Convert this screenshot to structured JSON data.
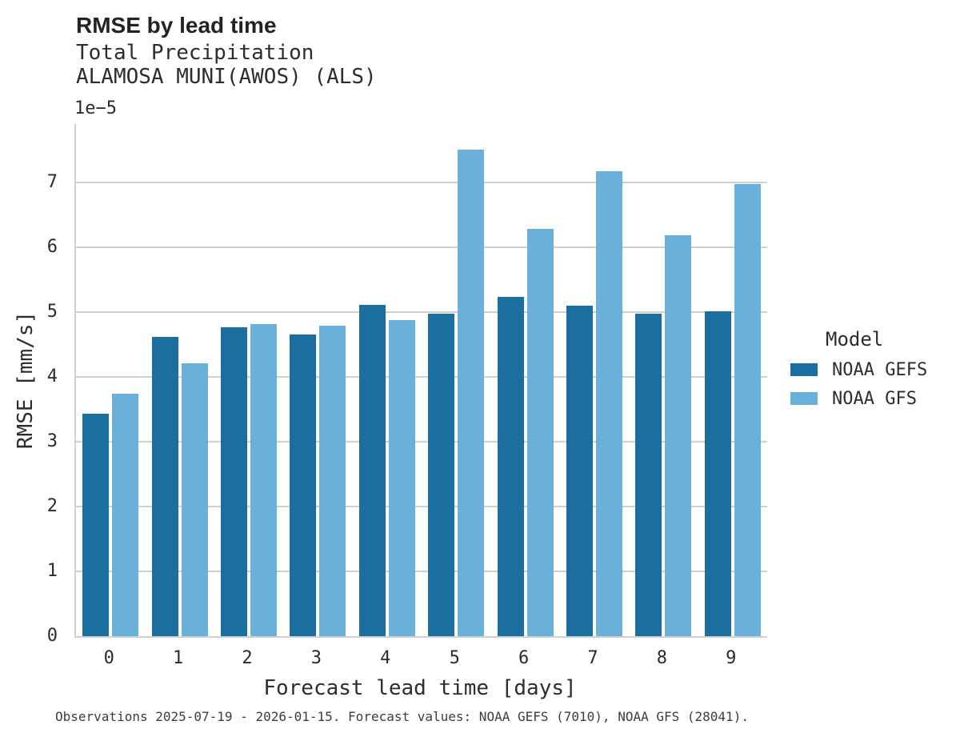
{
  "chart_data": {
    "type": "bar",
    "title": "RMSE by lead time",
    "subtitle": "Total Precipitation",
    "station": "ALAMOSA MUNI(AWOS) (ALS)",
    "y_offset_label": "1e−5",
    "xlabel": "Forecast lead time [days]",
    "ylabel": "RMSE [mm/s]",
    "categories": [
      "0",
      "1",
      "2",
      "3",
      "4",
      "5",
      "6",
      "7",
      "8",
      "9"
    ],
    "series": [
      {
        "name": "NOAA GEFS",
        "color": "#1b6f9e",
        "values": [
          3.43,
          4.62,
          4.77,
          4.65,
          5.11,
          4.98,
          5.24,
          5.1,
          4.97,
          5.01
        ]
      },
      {
        "name": "NOAA GFS",
        "color": "#69b1d9",
        "values": [
          3.74,
          4.21,
          4.81,
          4.79,
          4.87,
          7.51,
          6.28,
          7.17,
          6.18,
          6.97
        ]
      }
    ],
    "yticks": [
      0,
      1,
      2,
      3,
      4,
      5,
      6,
      7
    ],
    "ylim": [
      0,
      7.9
    ],
    "grid": "horizontal",
    "legend_title": "Model",
    "legend_position": "right"
  },
  "footer": {
    "note": "Observations 2025-07-19 - 2026-01-15. Forecast values: NOAA GEFS (7010), NOAA GFS (28041)."
  },
  "colors": {
    "grid": "#d0d0d0",
    "text": "#2b2b2b",
    "background": "#ffffff"
  }
}
